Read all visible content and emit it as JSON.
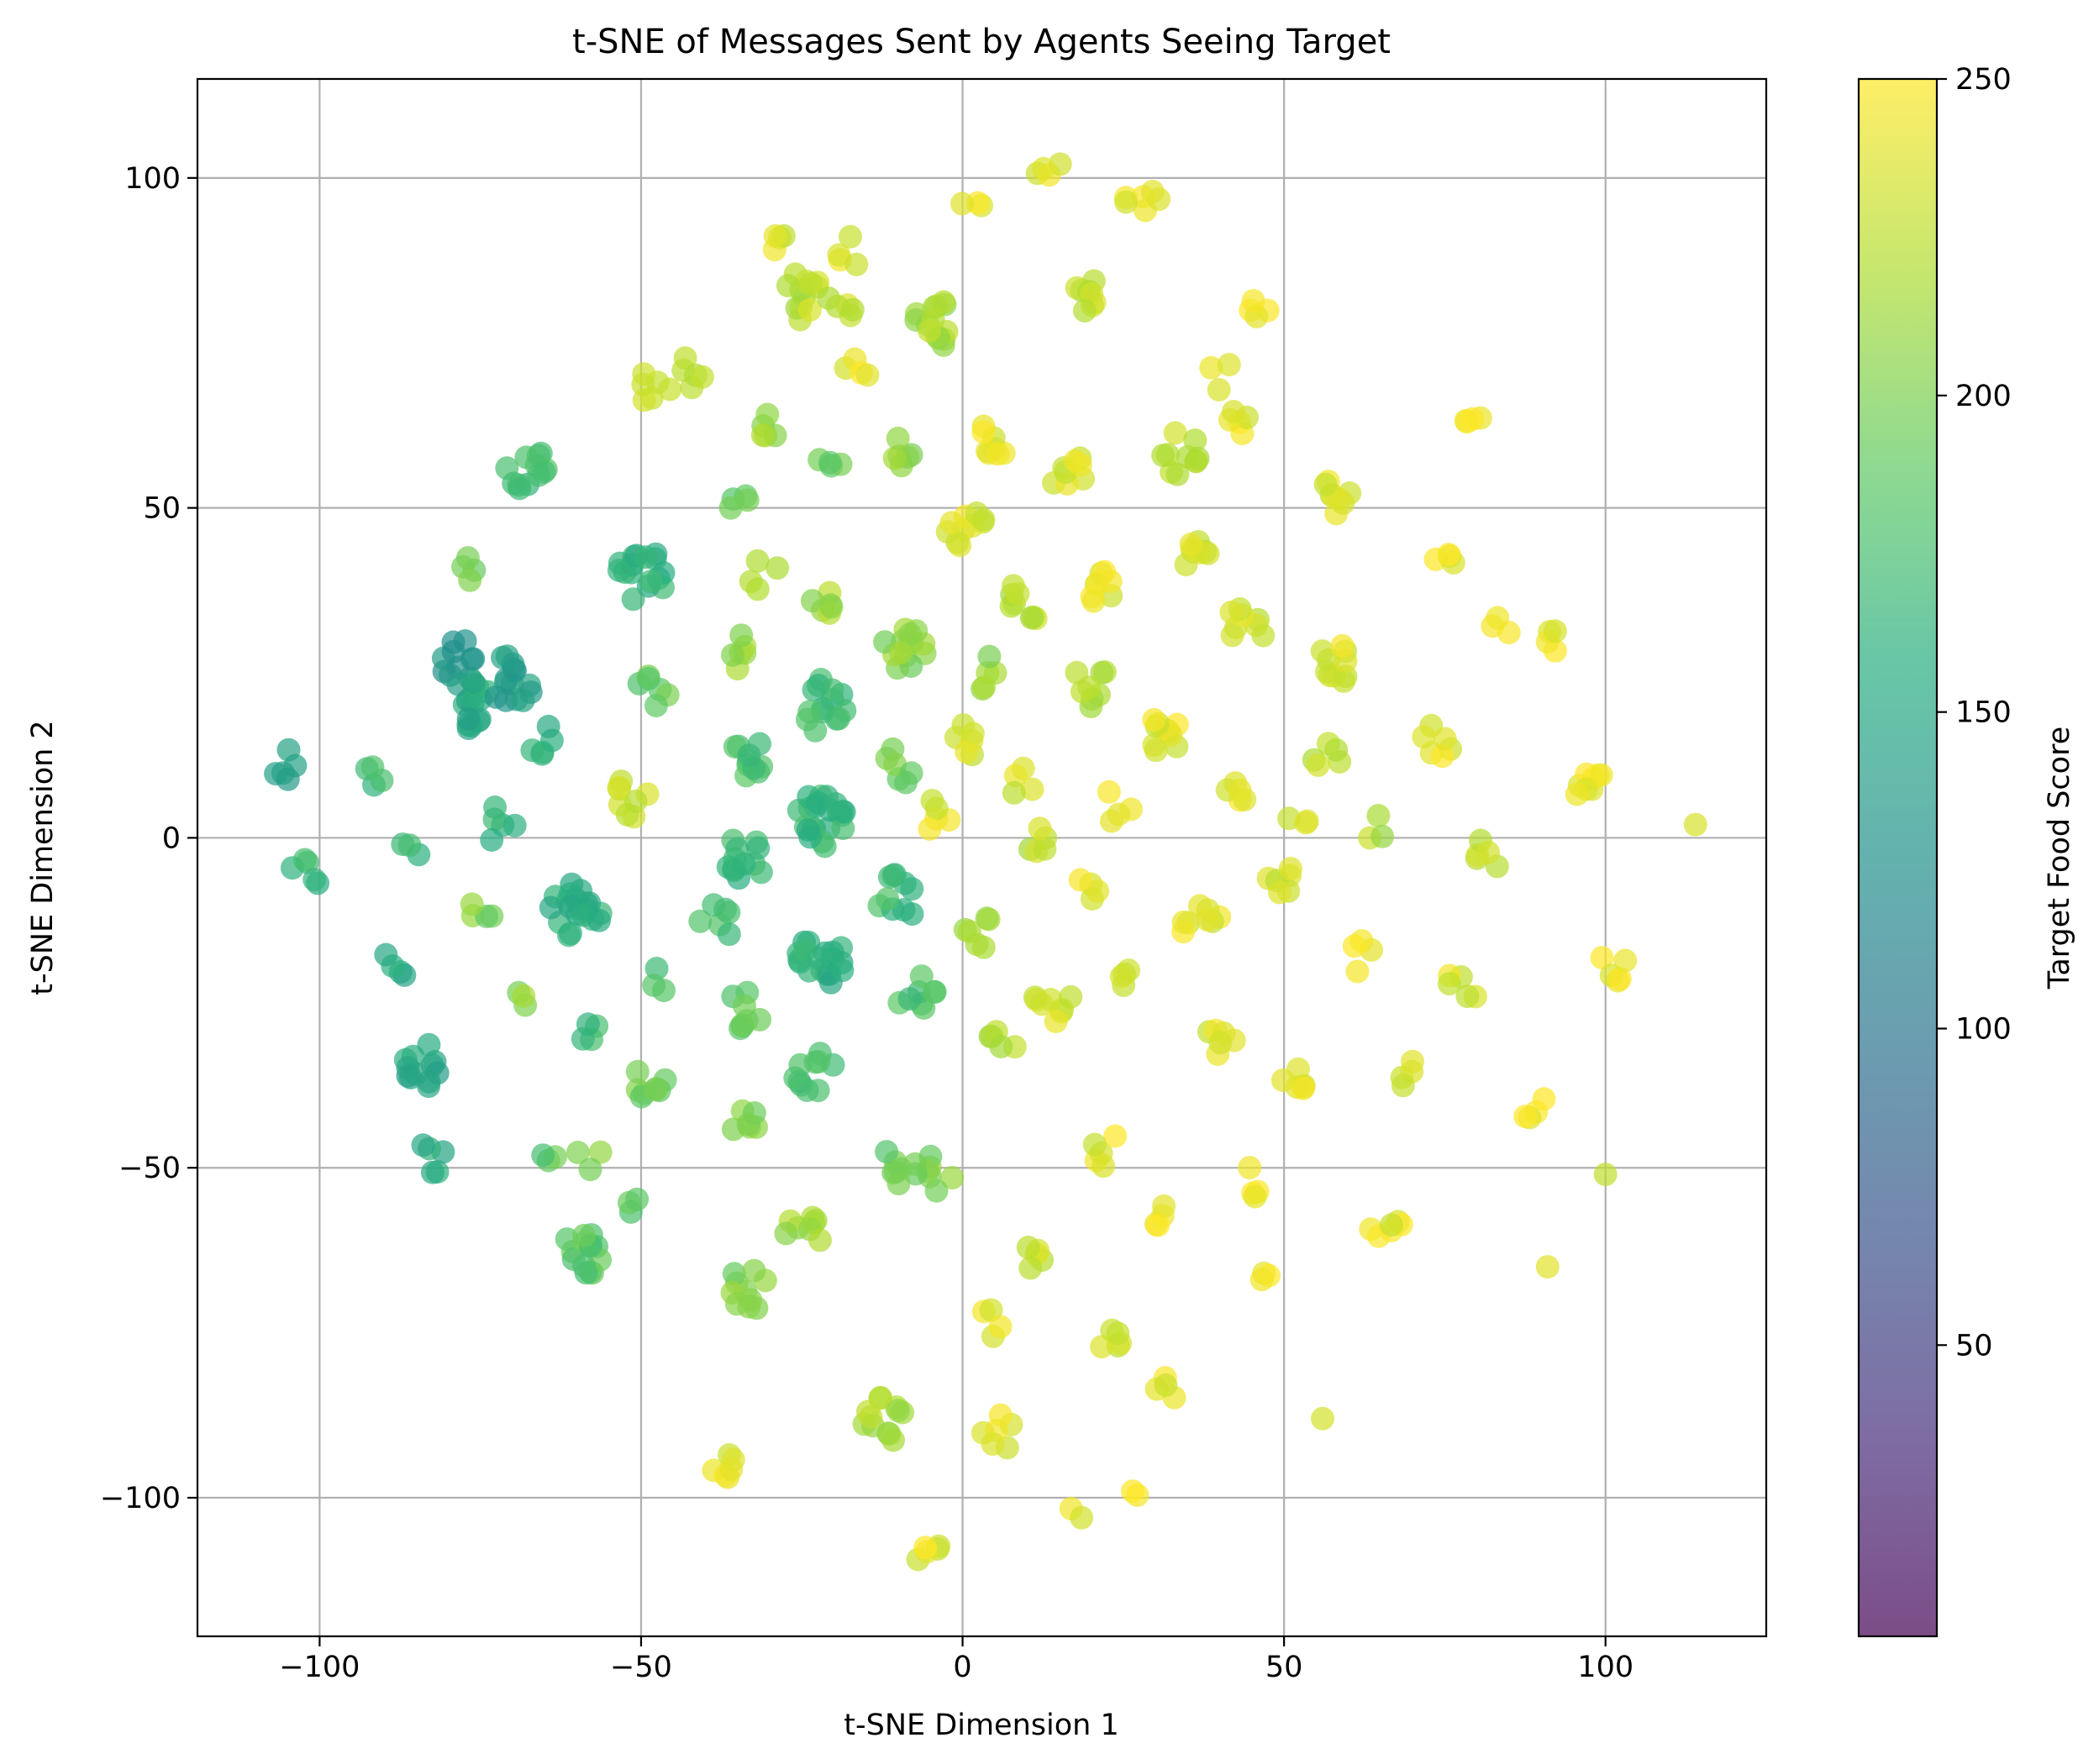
{
  "chart_data": {
    "type": "scatter",
    "title": "t-SNE of Messages Sent by Agents Seeing Target",
    "xlabel": "t-SNE Dimension 1",
    "ylabel": "t-SNE Dimension 2",
    "xlim": [
      -119,
      125
    ],
    "ylim": [
      -121,
      115
    ],
    "xticks": [
      -100,
      -50,
      0,
      50,
      100
    ],
    "yticks": [
      -100,
      -50,
      0,
      50,
      100
    ],
    "xtick_labels": [
      "−100",
      "−50",
      "0",
      "50",
      "100"
    ],
    "ytick_labels": [
      "−100",
      "−50",
      "0",
      "50",
      "100"
    ],
    "grid": true,
    "colormap": "viridis",
    "marker_alpha": 0.7,
    "colorbar": {
      "label": "Target Food Score",
      "range": [
        4,
        250
      ],
      "ticks": [
        50,
        100,
        150,
        200,
        250
      ],
      "tick_labels": [
        "50",
        "100",
        "150",
        "200",
        "250"
      ]
    },
    "clusters": [
      {
        "x": -106,
        "y": 11,
        "c": 140,
        "n": 5
      },
      {
        "x": -102,
        "y": -5,
        "c": 165,
        "n": 5
      },
      {
        "x": -92,
        "y": 9,
        "c": 170,
        "n": 4
      },
      {
        "x": -88,
        "y": -19,
        "c": 155,
        "n": 4
      },
      {
        "x": -86,
        "y": -2,
        "c": 170,
        "n": 3
      },
      {
        "x": -84,
        "y": -34,
        "c": 150,
        "n": 12
      },
      {
        "x": -83,
        "y": -49,
        "c": 155,
        "n": 5
      },
      {
        "x": -78,
        "y": 27,
        "c": 130,
        "n": 10
      },
      {
        "x": -76,
        "y": 20,
        "c": 150,
        "n": 16
      },
      {
        "x": -76,
        "y": 41,
        "c": 200,
        "n": 4
      },
      {
        "x": -75,
        "y": -11,
        "c": 200,
        "n": 4
      },
      {
        "x": -72,
        "y": 2,
        "c": 160,
        "n": 5
      },
      {
        "x": -70,
        "y": 24,
        "c": 140,
        "n": 14
      },
      {
        "x": -68,
        "y": 56,
        "c": 175,
        "n": 12
      },
      {
        "x": -69,
        "y": -24,
        "c": 205,
        "n": 3
      },
      {
        "x": -66,
        "y": 15,
        "c": 155,
        "n": 5
      },
      {
        "x": -64,
        "y": -49,
        "c": 185,
        "n": 3
      },
      {
        "x": -60,
        "y": -11,
        "c": 160,
        "n": 20
      },
      {
        "x": -58,
        "y": -29,
        "c": 165,
        "n": 4
      },
      {
        "x": -58,
        "y": -48,
        "c": 200,
        "n": 3
      },
      {
        "x": -50,
        "y": 40,
        "c": 160,
        "n": 16
      },
      {
        "x": -52,
        "y": 6,
        "c": 235,
        "n": 8
      },
      {
        "x": -52,
        "y": -55,
        "c": 190,
        "n": 3
      },
      {
        "x": -48,
        "y": 22,
        "c": 190,
        "n": 6
      },
      {
        "x": -48,
        "y": -37,
        "c": 195,
        "n": 8
      },
      {
        "x": -48,
        "y": -22,
        "c": 175,
        "n": 3
      },
      {
        "x": -48,
        "y": 68,
        "c": 235,
        "n": 6
      },
      {
        "x": -43,
        "y": 70,
        "c": 220,
        "n": 5
      },
      {
        "x": -38,
        "y": -13,
        "c": 170,
        "n": 6
      },
      {
        "x": -34,
        "y": -3,
        "c": 165,
        "n": 12
      },
      {
        "x": -34,
        "y": 12,
        "c": 175,
        "n": 10
      },
      {
        "x": -34,
        "y": -26,
        "c": 185,
        "n": 8
      },
      {
        "x": -34,
        "y": 28,
        "c": 210,
        "n": 6
      },
      {
        "x": -34,
        "y": 50,
        "c": 195,
        "n": 4
      },
      {
        "x": -34,
        "y": -43,
        "c": 205,
        "n": 6
      },
      {
        "x": -31,
        "y": 40,
        "c": 230,
        "n": 4
      },
      {
        "x": -29,
        "y": 62,
        "c": 215,
        "n": 5
      },
      {
        "x": -28,
        "y": 91,
        "c": 235,
        "n": 4
      },
      {
        "x": -25,
        "y": 82,
        "c": 225,
        "n": 12
      },
      {
        "x": -22,
        "y": 3,
        "c": 165,
        "n": 22
      },
      {
        "x": -22,
        "y": 20,
        "c": 170,
        "n": 14
      },
      {
        "x": -22,
        "y": -18,
        "c": 160,
        "n": 18
      },
      {
        "x": -23,
        "y": -36,
        "c": 175,
        "n": 10
      },
      {
        "x": -22,
        "y": 36,
        "c": 215,
        "n": 6
      },
      {
        "x": -20,
        "y": 58,
        "c": 195,
        "n": 4
      },
      {
        "x": -19,
        "y": 80,
        "c": 230,
        "n": 5
      },
      {
        "x": -17,
        "y": 89,
        "c": 240,
        "n": 4
      },
      {
        "x": -17,
        "y": 71,
        "c": 240,
        "n": 4
      },
      {
        "x": -12,
        "y": -88,
        "c": 215,
        "n": 12
      },
      {
        "x": -10,
        "y": -9,
        "c": 170,
        "n": 10
      },
      {
        "x": -9,
        "y": 29,
        "c": 205,
        "n": 14
      },
      {
        "x": -10,
        "y": 58,
        "c": 205,
        "n": 6
      },
      {
        "x": -10,
        "y": 11,
        "c": 195,
        "n": 6
      },
      {
        "x": -7,
        "y": -24,
        "c": 180,
        "n": 8
      },
      {
        "x": -6,
        "y": -108,
        "c": 240,
        "n": 5
      },
      {
        "x": -5,
        "y": 78,
        "c": 215,
        "n": 14
      },
      {
        "x": -4,
        "y": -51,
        "c": 200,
        "n": 6
      },
      {
        "x": 1,
        "y": 46,
        "c": 235,
        "n": 10
      },
      {
        "x": 1,
        "y": 95,
        "c": 245,
        "n": 3
      },
      {
        "x": 4,
        "y": 25,
        "c": 210,
        "n": 5
      },
      {
        "x": 5,
        "y": 61,
        "c": 240,
        "n": 8
      },
      {
        "x": 4,
        "y": -74,
        "c": 240,
        "n": 4
      },
      {
        "x": 6,
        "y": -32,
        "c": 220,
        "n": 5
      },
      {
        "x": 6,
        "y": -90,
        "c": 240,
        "n": 6
      },
      {
        "x": 10,
        "y": 36,
        "c": 220,
        "n": 8
      },
      {
        "x": 12,
        "y": -64,
        "c": 230,
        "n": 5
      },
      {
        "x": 13,
        "y": 102,
        "c": 235,
        "n": 4
      },
      {
        "x": 17,
        "y": 55,
        "c": 235,
        "n": 8
      },
      {
        "x": 19,
        "y": 82,
        "c": 225,
        "n": 8
      },
      {
        "x": 20,
        "y": 23,
        "c": 225,
        "n": 8
      },
      {
        "x": 21,
        "y": 39,
        "c": 240,
        "n": 8
      },
      {
        "x": 19,
        "y": -8,
        "c": 240,
        "n": 4
      },
      {
        "x": 22,
        "y": -47,
        "c": 240,
        "n": 5
      },
      {
        "x": 22,
        "y": -76,
        "c": 235,
        "n": 5
      },
      {
        "x": 28,
        "y": 96,
        "c": 240,
        "n": 6
      },
      {
        "x": 32,
        "y": 16,
        "c": 240,
        "n": 10
      },
      {
        "x": 34,
        "y": 58,
        "c": 225,
        "n": 10
      },
      {
        "x": 36,
        "y": 44,
        "c": 230,
        "n": 8
      },
      {
        "x": 37,
        "y": -13,
        "c": 240,
        "n": 8
      },
      {
        "x": 32,
        "y": -84,
        "c": 240,
        "n": 4
      },
      {
        "x": 44,
        "y": 32,
        "c": 235,
        "n": 8
      },
      {
        "x": 44,
        "y": 64,
        "c": 240,
        "n": 5
      },
      {
        "x": 47,
        "y": 81,
        "c": 245,
        "n": 4
      },
      {
        "x": 50,
        "y": -6,
        "c": 230,
        "n": 6
      },
      {
        "x": 51,
        "y": -36,
        "c": 240,
        "n": 6
      },
      {
        "x": 58,
        "y": 52,
        "c": 235,
        "n": 8
      },
      {
        "x": 58,
        "y": 27,
        "c": 235,
        "n": 10
      },
      {
        "x": 57,
        "y": 13,
        "c": 230,
        "n": 5
      },
      {
        "x": 66,
        "y": -60,
        "c": 240,
        "n": 6
      },
      {
        "x": 74,
        "y": 15,
        "c": 240,
        "n": 6
      },
      {
        "x": 79,
        "y": 65,
        "c": 245,
        "n": 4
      },
      {
        "x": 82,
        "y": -2,
        "c": 230,
        "n": 5
      },
      {
        "x": 92,
        "y": 30,
        "c": 245,
        "n": 4
      },
      {
        "x": 97,
        "y": 8,
        "c": 245,
        "n": 8
      },
      {
        "x": 101,
        "y": -20,
        "c": 245,
        "n": 5
      },
      {
        "x": 114,
        "y": 2,
        "c": 245,
        "n": 1
      },
      {
        "x": 88,
        "y": -40,
        "c": 245,
        "n": 4
      },
      {
        "x": -36,
        "y": -95,
        "c": 240,
        "n": 6
      },
      {
        "x": 17,
        "y": -103,
        "c": 245,
        "n": 2
      },
      {
        "x": 26,
        "y": -100,
        "c": 245,
        "n": 2
      },
      {
        "x": 56,
        "y": -88,
        "c": 245,
        "n": 1
      },
      {
        "x": -33,
        "y": -68,
        "c": 200,
        "n": 10
      },
      {
        "x": -58,
        "y": -62,
        "c": 185,
        "n": 14
      },
      {
        "x": -25,
        "y": -60,
        "c": 210,
        "n": 8
      },
      {
        "x": -10,
        "y": -50,
        "c": 190,
        "n": 8
      },
      {
        "x": 3,
        "y": -15,
        "c": 215,
        "n": 6
      },
      {
        "x": 14,
        "y": -25,
        "c": 235,
        "n": 8
      },
      {
        "x": 25,
        "y": -20,
        "c": 240,
        "n": 4
      },
      {
        "x": 30,
        "y": -58,
        "c": 240,
        "n": 4
      },
      {
        "x": 40,
        "y": -30,
        "c": 235,
        "n": 6
      },
      {
        "x": 46,
        "y": -52,
        "c": 240,
        "n": 4
      },
      {
        "x": 48,
        "y": -66,
        "c": 245,
        "n": 3
      },
      {
        "x": 68,
        "y": -35,
        "c": 240,
        "n": 4
      },
      {
        "x": 74,
        "y": 41,
        "c": 245,
        "n": 4
      },
      {
        "x": 83,
        "y": 31,
        "c": 240,
        "n": 3
      },
      {
        "x": 78,
        "y": -22,
        "c": 235,
        "n": 5
      },
      {
        "x": 62,
        "y": -18,
        "c": 240,
        "n": 4
      },
      {
        "x": 42,
        "y": 6,
        "c": 240,
        "n": 5
      },
      {
        "x": 12,
        "y": 0,
        "c": 225,
        "n": 5
      },
      {
        "x": 0,
        "y": 15,
        "c": 230,
        "n": 6
      },
      {
        "x": -4,
        "y": 3,
        "c": 235,
        "n": 5
      },
      {
        "x": 24,
        "y": 5,
        "c": 240,
        "n": 4
      },
      {
        "x": 52,
        "y": 4,
        "c": 240,
        "n": 3
      },
      {
        "x": 65,
        "y": 1,
        "c": 220,
        "n": 3
      },
      {
        "x": 40,
        "y": 70,
        "c": 245,
        "n": 3
      },
      {
        "x": 10,
        "y": 8,
        "c": 235,
        "n": 4
      },
      {
        "x": 100,
        "y": -51,
        "c": 235,
        "n": 1
      },
      {
        "x": 91,
        "y": -65,
        "c": 245,
        "n": 1
      }
    ]
  }
}
